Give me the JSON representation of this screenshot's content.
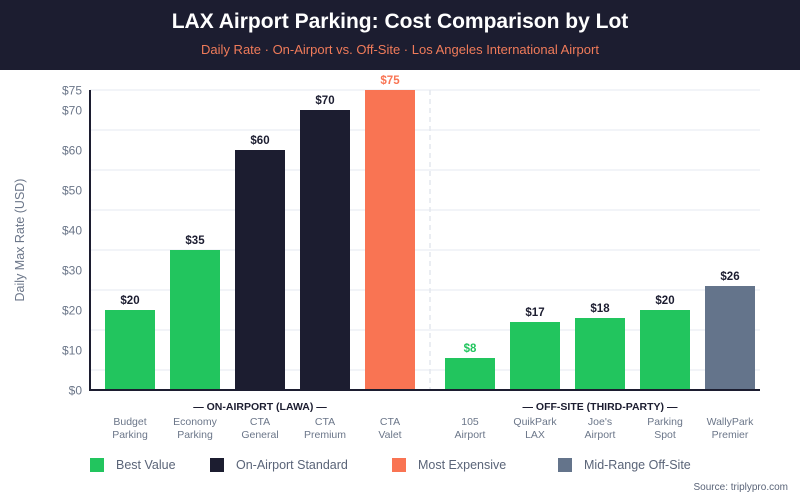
{
  "header": {
    "title": "LAX Airport Parking: Cost Comparison by Lot",
    "subtitle": "Daily Rate · On-Airport vs. Off-Site · Los Angeles International Airport"
  },
  "colors": {
    "best_value": "#22c55e",
    "on_airport_standard": "#1c1d30",
    "most_expensive": "#f97453",
    "mid_range_off_site": "#64748b",
    "header_bg": "#1c1d30",
    "subtitle": "#f07b5a"
  },
  "chart_data": {
    "type": "bar",
    "title": "LAX Airport Parking: Cost Comparison by Lot",
    "subtitle": "Daily Rate · On-Airport vs. Off-Site · Los Angeles International Airport",
    "ylabel": "Daily Max Rate (USD)",
    "xlabel": "",
    "ylim": [
      0,
      75
    ],
    "yticks": [
      0,
      10,
      20,
      30,
      40,
      50,
      60,
      70,
      75
    ],
    "ytick_labels": [
      "$0",
      "$10",
      "$20",
      "$30",
      "$40",
      "$50",
      "$60",
      "$70",
      "$75"
    ],
    "gridlines": [
      5,
      15,
      25,
      35,
      45,
      55,
      65,
      75
    ],
    "grid": true,
    "groups": [
      {
        "label": "— ON-AIRPORT (LAWA) —",
        "bars": [
          {
            "label_lines": [
              "Budget",
              "Parking"
            ],
            "value": 20,
            "value_label": "$20",
            "category": "best_value"
          },
          {
            "label_lines": [
              "Economy",
              "Parking"
            ],
            "value": 35,
            "value_label": "$35",
            "category": "best_value"
          },
          {
            "label_lines": [
              "CTA",
              "General"
            ],
            "value": 60,
            "value_label": "$60",
            "category": "on_airport_standard"
          },
          {
            "label_lines": [
              "CTA",
              "Premium"
            ],
            "value": 70,
            "value_label": "$70",
            "category": "on_airport_standard"
          },
          {
            "label_lines": [
              "CTA",
              "Valet"
            ],
            "value": 75,
            "value_label": "$75",
            "category": "most_expensive"
          }
        ]
      },
      {
        "label": "— OFF-SITE (THIRD-PARTY) —",
        "bars": [
          {
            "label_lines": [
              "105",
              "Airport"
            ],
            "value": 8,
            "value_label": "$8",
            "category": "best_value",
            "highlight_label": true
          },
          {
            "label_lines": [
              "QuikPark",
              "LAX"
            ],
            "value": 17,
            "value_label": "$17",
            "category": "best_value"
          },
          {
            "label_lines": [
              "Joe's",
              "Airport"
            ],
            "value": 18,
            "value_label": "$18",
            "category": "best_value"
          },
          {
            "label_lines": [
              "Parking",
              "Spot"
            ],
            "value": 20,
            "value_label": "$20",
            "category": "best_value"
          },
          {
            "label_lines": [
              "WallyPark",
              "Premier"
            ],
            "value": 26,
            "value_label": "$26",
            "category": "mid_range_off_site"
          }
        ]
      }
    ],
    "legend": {
      "placement": "bottom",
      "items": [
        {
          "key": "best_value",
          "label": "Best Value"
        },
        {
          "key": "on_airport_standard",
          "label": "On-Airport Standard"
        },
        {
          "key": "most_expensive",
          "label": "Most Expensive"
        },
        {
          "key": "mid_range_off_site",
          "label": "Mid-Range Off-Site"
        }
      ]
    }
  },
  "footer": {
    "source": "Source: triplypro.com"
  }
}
